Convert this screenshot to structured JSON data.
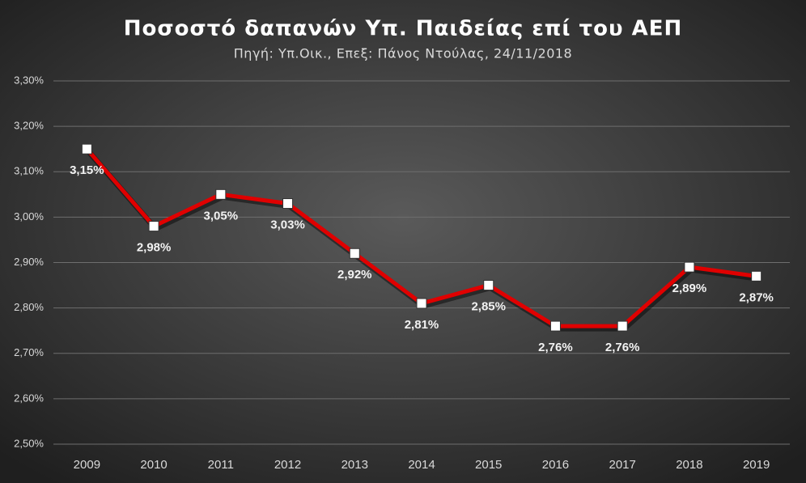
{
  "chart_data": {
    "type": "line",
    "title": "Ποσοστό δαπανών Υπ. Παιδείας επί του ΑΕΠ",
    "subtitle": "Πηγή: Υπ.Οικ., Επεξ: Πάνος Ντούλας, 24/11/2018",
    "categories": [
      "2009",
      "2010",
      "2011",
      "2012",
      "2013",
      "2014",
      "2015",
      "2016",
      "2017",
      "2018",
      "2019"
    ],
    "series": [
      {
        "color": "#e00000",
        "values": [
          3.15,
          2.98,
          3.05,
          3.03,
          2.92,
          2.81,
          2.85,
          2.76,
          2.76,
          2.89,
          2.87
        ],
        "value_labels": [
          "3,15%",
          "2,98%",
          "3,05%",
          "3,03%",
          "2,92%",
          "2,81%",
          "2,85%",
          "2,76%",
          "2,76%",
          "2,89%",
          "2,87%"
        ]
      }
    ],
    "ylim": [
      2.5,
      3.3
    ],
    "yticks": [
      {
        "value": 2.5,
        "label": "2,50%"
      },
      {
        "value": 2.6,
        "label": "2,60%"
      },
      {
        "value": 2.7,
        "label": "2,70%"
      },
      {
        "value": 2.8,
        "label": "2,80%"
      },
      {
        "value": 2.9,
        "label": "2,90%"
      },
      {
        "value": 3.0,
        "label": "3,00%"
      },
      {
        "value": 3.1,
        "label": "3,10%"
      },
      {
        "value": 3.2,
        "label": "3,20%"
      },
      {
        "value": 3.3,
        "label": "3,30%"
      }
    ],
    "grid": true
  }
}
